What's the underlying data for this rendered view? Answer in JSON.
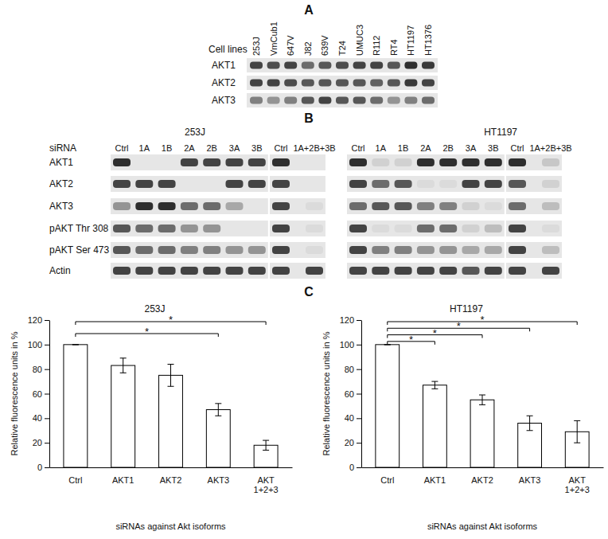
{
  "panel_labels": [
    "A",
    "B",
    "C"
  ],
  "blot_a": {
    "header": "Cell lines",
    "lanes": [
      "253J",
      "VmCub1",
      "647V",
      "J82",
      "639V",
      "T24",
      "UMUC3",
      "R112",
      "RT4",
      "HT1197",
      "HT1376"
    ],
    "rows": [
      {
        "label": "AKT1",
        "intensity": [
          0.8,
          0.75,
          0.8,
          0.6,
          0.7,
          0.75,
          0.8,
          0.8,
          0.7,
          0.9,
          0.85
        ]
      },
      {
        "label": "AKT2",
        "intensity": [
          0.8,
          0.8,
          0.75,
          0.7,
          0.7,
          0.7,
          0.7,
          0.65,
          0.7,
          0.85,
          0.8
        ]
      },
      {
        "label": "AKT3",
        "intensity": [
          0.5,
          0.4,
          0.5,
          0.7,
          0.8,
          0.7,
          0.7,
          0.6,
          0.4,
          0.5,
          0.6
        ]
      }
    ]
  },
  "blot_b": {
    "header": "siRNA",
    "rows": [
      "AKT1",
      "AKT2",
      "AKT3",
      "pAKT Thr 308",
      "pAKT Ser 473",
      "Actin"
    ],
    "blots": [
      {
        "title": "253J",
        "groups": [
          {
            "lanes": [
              "Ctrl",
              "1A",
              "1B",
              "2A",
              "2B",
              "3A",
              "3B"
            ],
            "intensity": [
              [
                0.9,
                0,
                0,
                0.8,
                0.8,
                0.8,
                0.8
              ],
              [
                0.8,
                0.8,
                0.8,
                0,
                0,
                0.8,
                0.8
              ],
              [
                0.4,
                0.9,
                0.9,
                0.6,
                0.6,
                0.3,
                0
              ],
              [
                0.7,
                0.6,
                0.6,
                0.4,
                0.4,
                0,
                0
              ],
              [
                0.7,
                0.6,
                0.6,
                0.5,
                0.5,
                0.4,
                0.4
              ],
              [
                0.8,
                0.8,
                0.8,
                0.8,
                0.8,
                0.8,
                0.8
              ]
            ]
          },
          {
            "lanes": [
              "Ctrl",
              "1A+2B+3B"
            ],
            "intensity": [
              [
                0.9,
                0
              ],
              [
                0.8,
                0
              ],
              [
                0.8,
                0.05
              ],
              [
                0.8,
                0.05
              ],
              [
                0.8,
                0.05
              ],
              [
                0.8,
                0.8
              ]
            ]
          }
        ]
      },
      {
        "title": "HT1197",
        "groups": [
          {
            "lanes": [
              "Ctrl",
              "1A",
              "1B",
              "2A",
              "2B",
              "3A",
              "3B"
            ],
            "intensity": [
              [
                0.9,
                0.1,
                0.1,
                0.9,
                0.9,
                0.9,
                0.9
              ],
              [
                0.8,
                0.6,
                0.7,
                0.05,
                0.05,
                0.8,
                0.8
              ],
              [
                0.6,
                0.7,
                0.7,
                0.5,
                0.5,
                0.1,
                0.05
              ],
              [
                0.8,
                0.05,
                0.05,
                0.6,
                0.6,
                0.1,
                0.2
              ],
              [
                0.8,
                0.5,
                0.5,
                0.4,
                0.4,
                0.3,
                0.3
              ],
              [
                0.8,
                0.8,
                0.8,
                0.8,
                0.8,
                0.7,
                0.8
              ]
            ]
          },
          {
            "lanes": [
              "Ctrl",
              "1A+2B+3B"
            ],
            "intensity": [
              [
                0.9,
                0.15
              ],
              [
                0.7,
                0.1
              ],
              [
                0.6,
                0.2
              ],
              [
                0.8,
                0.05
              ],
              [
                0.8,
                0.2
              ],
              [
                0.8,
                0.8
              ]
            ]
          }
        ]
      }
    ]
  },
  "chart_data": [
    {
      "type": "bar",
      "title": "253J",
      "categories": [
        "Ctrl",
        "AKT1",
        "AKT2",
        "AKT3",
        "AKT\n1+2+3"
      ],
      "values": [
        100,
        83,
        75,
        47,
        18
      ],
      "errors": [
        0,
        6,
        9,
        5,
        4
      ],
      "ylim": [
        0,
        120
      ],
      "yticks": [
        0,
        20,
        40,
        60,
        80,
        100,
        120
      ],
      "xlabel": "siRNAs against Akt isoforms",
      "ylabel": "Relative fluorescence units in %",
      "color": "#ffffff",
      "significance": [
        {
          "pair": [
            "Ctrl",
            "AKT3"
          ],
          "label": "*"
        },
        {
          "pair": [
            "Ctrl",
            "AKT\n1+2+3"
          ],
          "label": "*"
        }
      ]
    },
    {
      "type": "bar",
      "title": "HT1197",
      "categories": [
        "Ctrl",
        "AKT1",
        "AKT2",
        "AKT3",
        "AKT\n1+2+3"
      ],
      "values": [
        100,
        67,
        55,
        36,
        29
      ],
      "errors": [
        0,
        3,
        4,
        6,
        9
      ],
      "ylim": [
        0,
        120
      ],
      "yticks": [
        0,
        20,
        40,
        60,
        80,
        100,
        120
      ],
      "xlabel": "siRNAs against Akt isoforms",
      "ylabel": "Relative fluorescence units in %",
      "color": "#ffffff",
      "significance": [
        {
          "pair": [
            "Ctrl",
            "AKT1"
          ],
          "label": "*"
        },
        {
          "pair": [
            "Ctrl",
            "AKT2"
          ],
          "label": "*"
        },
        {
          "pair": [
            "Ctrl",
            "AKT3"
          ],
          "label": "*"
        },
        {
          "pair": [
            "Ctrl",
            "AKT\n1+2+3"
          ],
          "label": "*"
        }
      ]
    }
  ]
}
